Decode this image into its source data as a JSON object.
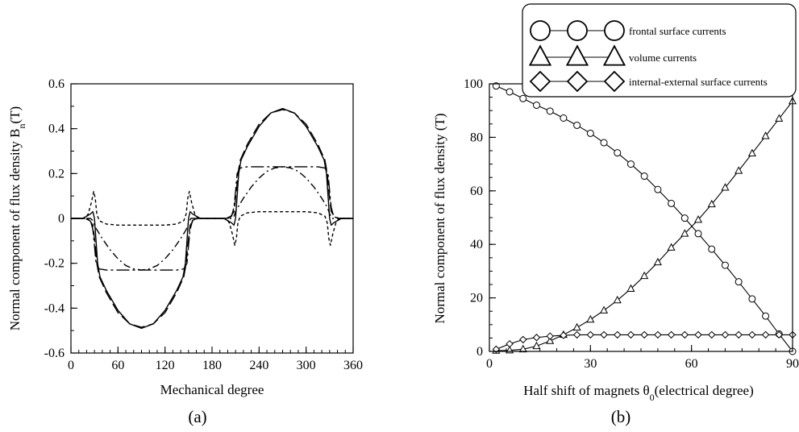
{
  "chart_data": [
    {
      "panel_label": "(a)",
      "type": "line",
      "xlabel": "Mechanical degree",
      "ylabel": {
        "main": "Normal component of flux density B",
        "sub": "n",
        "unit": "(T)"
      },
      "xlim": [
        0,
        360
      ],
      "ylim": [
        -0.6,
        0.6
      ],
      "xticks": [
        0,
        60,
        120,
        180,
        240,
        300,
        360
      ],
      "yticks": [
        -0.6,
        -0.4,
        -0.2,
        0,
        0.2,
        0.4,
        0.6
      ],
      "ytick_labels": [
        "-0.6",
        "-0.4",
        "-0.2",
        "0",
        "0.2",
        "0.4",
        "0.6"
      ],
      "x_minor_step": 10,
      "y_minor_step": 0.1,
      "series": [
        {
          "style": "solid",
          "stroke": "#000000",
          "points": [
            [
              0,
              0
            ],
            [
              15,
              0
            ],
            [
              20,
              0.01
            ],
            [
              25,
              0.02
            ],
            [
              28,
              0.03
            ],
            [
              30,
              0.0
            ],
            [
              32,
              -0.1
            ],
            [
              34,
              -0.2
            ],
            [
              37,
              -0.26
            ],
            [
              45,
              -0.32
            ],
            [
              60,
              -0.41
            ],
            [
              75,
              -0.47
            ],
            [
              90,
              -0.49
            ],
            [
              105,
              -0.47
            ],
            [
              120,
              -0.41
            ],
            [
              135,
              -0.32
            ],
            [
              143,
              -0.26
            ],
            [
              146,
              -0.2
            ],
            [
              148,
              -0.1
            ],
            [
              150,
              0.0
            ],
            [
              152,
              0.03
            ],
            [
              155,
              0.02
            ],
            [
              160,
              0.01
            ],
            [
              165,
              0
            ],
            [
              195,
              0
            ],
            [
              200,
              -0.01
            ],
            [
              205,
              -0.02
            ],
            [
              208,
              -0.03
            ],
            [
              210,
              0.0
            ],
            [
              212,
              0.1
            ],
            [
              214,
              0.2
            ],
            [
              217,
              0.26
            ],
            [
              225,
              0.32
            ],
            [
              240,
              0.41
            ],
            [
              255,
              0.47
            ],
            [
              270,
              0.49
            ],
            [
              285,
              0.47
            ],
            [
              300,
              0.41
            ],
            [
              315,
              0.32
            ],
            [
              323,
              0.26
            ],
            [
              326,
              0.2
            ],
            [
              328,
              0.1
            ],
            [
              330,
              0.0
            ],
            [
              332,
              -0.03
            ],
            [
              335,
              -0.02
            ],
            [
              340,
              -0.01
            ],
            [
              345,
              0
            ],
            [
              360,
              0
            ]
          ]
        },
        {
          "style": "long-dash",
          "stroke": "#000000",
          "points": [
            [
              0,
              0
            ],
            [
              18,
              0
            ],
            [
              24,
              -0.01
            ],
            [
              28,
              -0.03
            ],
            [
              31,
              -0.12
            ],
            [
              33,
              -0.2
            ],
            [
              36,
              -0.26
            ],
            [
              45,
              -0.33
            ],
            [
              60,
              -0.42
            ],
            [
              75,
              -0.47
            ],
            [
              90,
              -0.485
            ],
            [
              105,
              -0.47
            ],
            [
              120,
              -0.42
            ],
            [
              135,
              -0.33
            ],
            [
              144,
              -0.26
            ],
            [
              147,
              -0.2
            ],
            [
              149,
              -0.12
            ],
            [
              152,
              -0.03
            ],
            [
              156,
              -0.01
            ],
            [
              162,
              0
            ],
            [
              198,
              0
            ],
            [
              204,
              0.01
            ],
            [
              208,
              0.03
            ],
            [
              211,
              0.12
            ],
            [
              213,
              0.2
            ],
            [
              216,
              0.26
            ],
            [
              225,
              0.33
            ],
            [
              240,
              0.42
            ],
            [
              255,
              0.47
            ],
            [
              270,
              0.485
            ],
            [
              285,
              0.47
            ],
            [
              300,
              0.42
            ],
            [
              315,
              0.33
            ],
            [
              324,
              0.26
            ],
            [
              327,
              0.2
            ],
            [
              329,
              0.12
            ],
            [
              332,
              0.03
            ],
            [
              336,
              0.01
            ],
            [
              342,
              0
            ],
            [
              360,
              0
            ]
          ]
        },
        {
          "style": "short-dash",
          "stroke": "#000000",
          "points": [
            [
              0,
              0
            ],
            [
              18,
              0
            ],
            [
              22,
              0.02
            ],
            [
              26,
              0.07
            ],
            [
              29,
              0.12
            ],
            [
              31,
              0.09
            ],
            [
              33,
              0.02
            ],
            [
              36,
              -0.01
            ],
            [
              45,
              -0.025
            ],
            [
              60,
              -0.03
            ],
            [
              90,
              -0.03
            ],
            [
              120,
              -0.03
            ],
            [
              135,
              -0.025
            ],
            [
              144,
              -0.01
            ],
            [
              147,
              0.02
            ],
            [
              149,
              0.09
            ],
            [
              151,
              0.12
            ],
            [
              154,
              0.07
            ],
            [
              158,
              0.02
            ],
            [
              162,
              0
            ],
            [
              198,
              0
            ],
            [
              202,
              -0.02
            ],
            [
              206,
              -0.07
            ],
            [
              209,
              -0.12
            ],
            [
              211,
              -0.09
            ],
            [
              213,
              -0.02
            ],
            [
              216,
              0.01
            ],
            [
              225,
              0.025
            ],
            [
              240,
              0.03
            ],
            [
              270,
              0.03
            ],
            [
              300,
              0.03
            ],
            [
              315,
              0.025
            ],
            [
              324,
              0.01
            ],
            [
              327,
              -0.02
            ],
            [
              329,
              -0.09
            ],
            [
              331,
              -0.12
            ],
            [
              334,
              -0.07
            ],
            [
              338,
              -0.02
            ],
            [
              342,
              0
            ],
            [
              360,
              0
            ]
          ]
        },
        {
          "style": "dash-dot",
          "stroke": "#000000",
          "points": [
            [
              0,
              0
            ],
            [
              25,
              0
            ],
            [
              28,
              -0.01
            ],
            [
              31,
              -0.04
            ],
            [
              33,
              -0.05
            ],
            [
              40,
              -0.09
            ],
            [
              50,
              -0.14
            ],
            [
              60,
              -0.18
            ],
            [
              70,
              -0.21
            ],
            [
              80,
              -0.225
            ],
            [
              90,
              -0.23
            ],
            [
              100,
              -0.225
            ],
            [
              110,
              -0.21
            ],
            [
              120,
              -0.18
            ],
            [
              130,
              -0.14
            ],
            [
              140,
              -0.09
            ],
            [
              147,
              -0.05
            ],
            [
              150,
              -0.02
            ],
            [
              153,
              0
            ],
            [
              205,
              0
            ],
            [
              208,
              0.01
            ],
            [
              211,
              0.04
            ],
            [
              213,
              0.05
            ],
            [
              220,
              0.09
            ],
            [
              230,
              0.14
            ],
            [
              240,
              0.18
            ],
            [
              250,
              0.21
            ],
            [
              260,
              0.225
            ],
            [
              270,
              0.23
            ],
            [
              280,
              0.225
            ],
            [
              290,
              0.21
            ],
            [
              300,
              0.18
            ],
            [
              310,
              0.14
            ],
            [
              320,
              0.09
            ],
            [
              327,
              0.05
            ],
            [
              330,
              0.02
            ],
            [
              333,
              0
            ],
            [
              360,
              0
            ]
          ]
        },
        {
          "style": "long-dash-dot",
          "stroke": "#000000",
          "points": [
            [
              0,
              0
            ],
            [
              20,
              0
            ],
            [
              25,
              -0.01
            ],
            [
              28,
              -0.05
            ],
            [
              30,
              -0.12
            ],
            [
              32,
              -0.2
            ],
            [
              36,
              -0.225
            ],
            [
              45,
              -0.23
            ],
            [
              60,
              -0.23
            ],
            [
              90,
              -0.23
            ],
            [
              120,
              -0.23
            ],
            [
              135,
              -0.23
            ],
            [
              144,
              -0.225
            ],
            [
              148,
              -0.2
            ],
            [
              150,
              -0.12
            ],
            [
              152,
              -0.05
            ],
            [
              155,
              -0.01
            ],
            [
              160,
              0
            ],
            [
              200,
              0
            ],
            [
              205,
              0.01
            ],
            [
              208,
              0.05
            ],
            [
              210,
              0.12
            ],
            [
              212,
              0.2
            ],
            [
              216,
              0.225
            ],
            [
              225,
              0.23
            ],
            [
              240,
              0.23
            ],
            [
              270,
              0.23
            ],
            [
              300,
              0.23
            ],
            [
              315,
              0.23
            ],
            [
              324,
              0.225
            ],
            [
              328,
              0.2
            ],
            [
              330,
              0.12
            ],
            [
              332,
              0.05
            ],
            [
              335,
              0.01
            ],
            [
              340,
              0
            ],
            [
              360,
              0
            ]
          ]
        }
      ]
    },
    {
      "panel_label": "(b)",
      "type": "line",
      "xlabel": {
        "main": "Half shift of magnets θ",
        "sub": "0",
        "unit": "(electrical degree)"
      },
      "ylabel": "Normal component of flux density (T)",
      "xlim": [
        0,
        90
      ],
      "ylim": [
        0,
        100
      ],
      "xticks": [
        0,
        30,
        60,
        90
      ],
      "yticks": [
        0,
        20,
        40,
        60,
        80,
        100
      ],
      "x_minor_step": 5,
      "y_minor_step": 5,
      "legend_position": "top-right",
      "series": [
        {
          "name": "frontal surface currents",
          "marker": "circle",
          "x": [
            2,
            6,
            10,
            14,
            18,
            22,
            26,
            30,
            34,
            38,
            42,
            46,
            50,
            54,
            58,
            62,
            66,
            70,
            74,
            78,
            82,
            86,
            90
          ],
          "y": [
            99.2,
            97.0,
            94.5,
            92.0,
            89.8,
            87.2,
            84.5,
            81.5,
            78.0,
            74.2,
            70.0,
            65.5,
            60.5,
            55.3,
            49.8,
            44.0,
            38.2,
            32.2,
            26.0,
            19.6,
            13.2,
            6.5,
            0
          ]
        },
        {
          "name": "volume currents",
          "marker": "triangle",
          "x": [
            2,
            6,
            10,
            14,
            18,
            22,
            26,
            30,
            34,
            38,
            42,
            46,
            50,
            54,
            58,
            62,
            66,
            70,
            74,
            78,
            82,
            86,
            90
          ],
          "y": [
            0.3,
            0.4,
            0.8,
            2.0,
            3.9,
            6.2,
            8.9,
            11.9,
            15.3,
            19.1,
            23.4,
            28.2,
            33.3,
            38.8,
            44.0,
            49.2,
            55.0,
            61.2,
            67.5,
            74.0,
            80.5,
            87.0,
            93.5
          ]
        },
        {
          "name": "internal-external surface currents",
          "marker": "diamond",
          "x": [
            2,
            6,
            10,
            14,
            18,
            22,
            26,
            30,
            34,
            38,
            42,
            46,
            50,
            54,
            58,
            62,
            66,
            70,
            74,
            78,
            82,
            86,
            90
          ],
          "y": [
            0.8,
            2.8,
            4.4,
            5.2,
            5.7,
            6.0,
            6.2,
            6.2,
            6.2,
            6.2,
            6.2,
            6.2,
            6.2,
            6.2,
            6.2,
            6.2,
            6.2,
            6.2,
            6.2,
            6.2,
            6.2,
            6.2,
            6.2
          ]
        }
      ]
    }
  ]
}
